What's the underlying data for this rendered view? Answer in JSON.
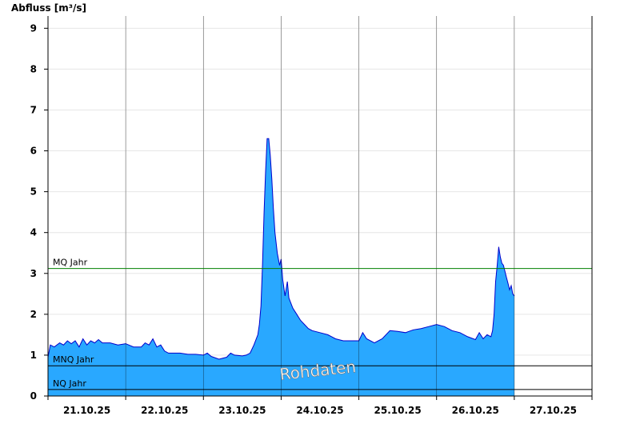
{
  "chart_data": {
    "type": "area",
    "ylabel": "Abfluss [m³/s]",
    "ylim": [
      0,
      9.3
    ],
    "y_ticks": [
      "0",
      "1",
      "2",
      "3",
      "4",
      "5",
      "6",
      "7",
      "8",
      "9"
    ],
    "x_tick_labels": [
      "21.10.25",
      "22.10.25",
      "23.10.25",
      "24.10.25",
      "25.10.25",
      "26.10.25",
      "27.10.25"
    ],
    "x_range_days": [
      20.0,
      27.0
    ],
    "grid": true,
    "watermark": "Rohdaten",
    "reference_lines": [
      {
        "label": "MQ Jahr",
        "value": 3.12,
        "color": "#008000"
      },
      {
        "label": "MNQ Jahr",
        "value": 0.74,
        "color": "#000000"
      },
      {
        "label": "NQ Jahr",
        "value": 0.16,
        "color": "#000000"
      }
    ],
    "series": [
      {
        "fill_color": "#29A8FF",
        "line_color": "#0000CC",
        "points": [
          [
            20.0,
            0.95
          ],
          [
            20.03,
            1.25
          ],
          [
            20.08,
            1.2
          ],
          [
            20.15,
            1.3
          ],
          [
            20.2,
            1.25
          ],
          [
            20.25,
            1.35
          ],
          [
            20.3,
            1.28
          ],
          [
            20.35,
            1.35
          ],
          [
            20.4,
            1.2
          ],
          [
            20.45,
            1.4
          ],
          [
            20.5,
            1.25
          ],
          [
            20.55,
            1.35
          ],
          [
            20.6,
            1.3
          ],
          [
            20.65,
            1.38
          ],
          [
            20.7,
            1.3
          ],
          [
            20.8,
            1.3
          ],
          [
            20.9,
            1.25
          ],
          [
            21.0,
            1.28
          ],
          [
            21.1,
            1.2
          ],
          [
            21.2,
            1.2
          ],
          [
            21.25,
            1.3
          ],
          [
            21.3,
            1.25
          ],
          [
            21.35,
            1.4
          ],
          [
            21.4,
            1.2
          ],
          [
            21.45,
            1.25
          ],
          [
            21.5,
            1.1
          ],
          [
            21.55,
            1.05
          ],
          [
            21.6,
            1.05
          ],
          [
            21.7,
            1.05
          ],
          [
            21.8,
            1.02
          ],
          [
            21.9,
            1.02
          ],
          [
            22.0,
            1.0
          ],
          [
            22.05,
            1.05
          ],
          [
            22.1,
            0.97
          ],
          [
            22.2,
            0.9
          ],
          [
            22.3,
            0.95
          ],
          [
            22.35,
            1.05
          ],
          [
            22.4,
            1.0
          ],
          [
            22.5,
            0.98
          ],
          [
            22.55,
            1.0
          ],
          [
            22.6,
            1.05
          ],
          [
            22.65,
            1.25
          ],
          [
            22.7,
            1.5
          ],
          [
            22.72,
            1.75
          ],
          [
            22.74,
            2.2
          ],
          [
            22.76,
            3.2
          ],
          [
            22.78,
            4.5
          ],
          [
            22.8,
            5.5
          ],
          [
            22.82,
            6.3
          ],
          [
            22.84,
            6.3
          ],
          [
            22.86,
            5.9
          ],
          [
            22.88,
            5.3
          ],
          [
            22.9,
            4.6
          ],
          [
            22.92,
            4.0
          ],
          [
            22.95,
            3.5
          ],
          [
            22.98,
            3.2
          ],
          [
            23.0,
            3.35
          ],
          [
            23.02,
            2.85
          ],
          [
            23.05,
            2.45
          ],
          [
            23.08,
            2.8
          ],
          [
            23.1,
            2.4
          ],
          [
            23.15,
            2.15
          ],
          [
            23.2,
            2.0
          ],
          [
            23.25,
            1.85
          ],
          [
            23.3,
            1.75
          ],
          [
            23.35,
            1.65
          ],
          [
            23.4,
            1.6
          ],
          [
            23.5,
            1.55
          ],
          [
            23.6,
            1.5
          ],
          [
            23.65,
            1.45
          ],
          [
            23.7,
            1.4
          ],
          [
            23.8,
            1.35
          ],
          [
            23.9,
            1.35
          ],
          [
            24.0,
            1.35
          ],
          [
            24.05,
            1.55
          ],
          [
            24.1,
            1.4
          ],
          [
            24.2,
            1.3
          ],
          [
            24.3,
            1.4
          ],
          [
            24.4,
            1.6
          ],
          [
            24.5,
            1.58
          ],
          [
            24.6,
            1.55
          ],
          [
            24.7,
            1.62
          ],
          [
            24.8,
            1.65
          ],
          [
            24.9,
            1.7
          ],
          [
            25.0,
            1.75
          ],
          [
            25.1,
            1.7
          ],
          [
            25.2,
            1.6
          ],
          [
            25.3,
            1.55
          ],
          [
            25.4,
            1.45
          ],
          [
            25.5,
            1.38
          ],
          [
            25.55,
            1.55
          ],
          [
            25.6,
            1.4
          ],
          [
            25.65,
            1.5
          ],
          [
            25.7,
            1.45
          ],
          [
            25.72,
            1.6
          ],
          [
            25.74,
            2.0
          ],
          [
            25.76,
            2.8
          ],
          [
            25.78,
            3.2
          ],
          [
            25.8,
            3.65
          ],
          [
            25.82,
            3.4
          ],
          [
            25.84,
            3.25
          ],
          [
            25.86,
            3.2
          ],
          [
            25.88,
            3.05
          ],
          [
            25.9,
            2.9
          ],
          [
            25.92,
            2.75
          ],
          [
            25.94,
            2.6
          ],
          [
            25.96,
            2.7
          ],
          [
            25.98,
            2.5
          ],
          [
            26.0,
            2.45
          ]
        ]
      }
    ]
  }
}
